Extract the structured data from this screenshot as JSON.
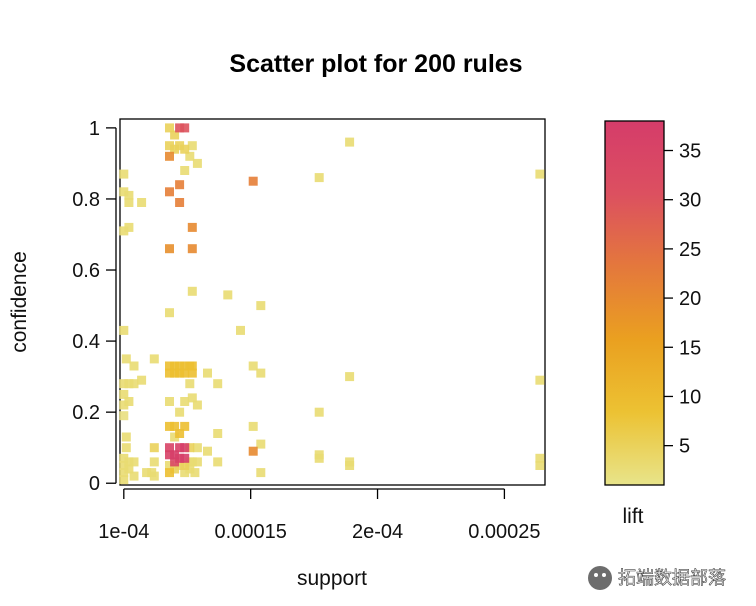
{
  "chart_data": {
    "type": "scatter",
    "title": "Scatter plot for 200 rules",
    "xlabel": "support",
    "ylabel": "confidence",
    "xlim": [
      9.85e-05,
      0.000266
    ],
    "ylim": [
      -0.005,
      1.025
    ],
    "x_ticks": [
      {
        "value": 0.0001,
        "label": "1e-04"
      },
      {
        "value": 0.00015,
        "label": "0.00015"
      },
      {
        "value": 0.0002,
        "label": "2e-04"
      },
      {
        "value": 0.00025,
        "label": "0.00025"
      }
    ],
    "y_ticks": [
      {
        "value": 0,
        "label": "0"
      },
      {
        "value": 0.2,
        "label": "0.2"
      },
      {
        "value": 0.4,
        "label": "0.4"
      },
      {
        "value": 0.6,
        "label": "0.6"
      },
      {
        "value": 0.8,
        "label": "0.8"
      },
      {
        "value": 1,
        "label": "1"
      }
    ],
    "grid": false,
    "legend": {
      "label": "lift",
      "placement": "right",
      "range": [
        1,
        38
      ],
      "ticks": [
        5,
        10,
        15,
        20,
        25,
        30,
        35
      ],
      "colors": [
        "#e8e48a",
        "#ecc233",
        "#eaa020",
        "#e4783c",
        "#dc5060",
        "#d53c6a"
      ]
    },
    "points": [
      [
        0.0001,
        0.87,
        3
      ],
      [
        0.0001,
        0.82,
        3
      ],
      [
        0.0001,
        0.71,
        3
      ],
      [
        0.0001,
        0.43,
        3
      ],
      [
        0.0001,
        0.28,
        3
      ],
      [
        0.0001,
        0.25,
        3
      ],
      [
        0.0001,
        0.22,
        3
      ],
      [
        0.0001,
        0.19,
        2
      ],
      [
        0.0001,
        0.07,
        3
      ],
      [
        0.0001,
        0.05,
        3
      ],
      [
        0.0001,
        0.03,
        3
      ],
      [
        0.0001,
        0.01,
        3
      ],
      [
        0.000101,
        0.35,
        3
      ],
      [
        0.000101,
        0.13,
        3
      ],
      [
        0.000101,
        0.1,
        3
      ],
      [
        0.000102,
        0.72,
        3
      ],
      [
        0.000102,
        0.81,
        3
      ],
      [
        0.000102,
        0.79,
        3
      ],
      [
        0.000102,
        0.28,
        3
      ],
      [
        0.000102,
        0.23,
        3
      ],
      [
        0.000102,
        0.06,
        3
      ],
      [
        0.000102,
        0.04,
        3
      ],
      [
        0.000104,
        0.33,
        3
      ],
      [
        0.000104,
        0.28,
        3
      ],
      [
        0.000104,
        0.06,
        3
      ],
      [
        0.000104,
        0.02,
        3
      ],
      [
        0.000107,
        0.79,
        3
      ],
      [
        0.000107,
        0.29,
        3
      ],
      [
        0.000109,
        0.03,
        3
      ],
      [
        0.000111,
        0.03,
        3
      ],
      [
        0.000112,
        0.1,
        5
      ],
      [
        0.000112,
        0.35,
        3
      ],
      [
        0.000112,
        0.06,
        3
      ],
      [
        0.000112,
        0.02,
        3
      ],
      [
        0.000118,
        1.0,
        5
      ],
      [
        0.000118,
        0.95,
        5
      ],
      [
        0.000118,
        0.92,
        20
      ],
      [
        0.000118,
        0.82,
        22
      ],
      [
        0.000118,
        0.66,
        19
      ],
      [
        0.000118,
        0.48,
        3
      ],
      [
        0.000118,
        0.33,
        9
      ],
      [
        0.000118,
        0.31,
        9
      ],
      [
        0.000118,
        0.23,
        3
      ],
      [
        0.000118,
        0.16,
        9
      ],
      [
        0.000118,
        0.1,
        35
      ],
      [
        0.000118,
        0.08,
        36
      ],
      [
        0.000118,
        0.05,
        3
      ],
      [
        0.000118,
        0.03,
        9
      ],
      [
        0.00012,
        0.98,
        5
      ],
      [
        0.00012,
        0.94,
        5
      ],
      [
        0.00012,
        0.33,
        9
      ],
      [
        0.00012,
        0.31,
        9
      ],
      [
        0.00012,
        0.16,
        9
      ],
      [
        0.00012,
        0.13,
        3
      ],
      [
        0.00012,
        0.08,
        37
      ],
      [
        0.00012,
        0.06,
        34
      ],
      [
        0.00012,
        0.04,
        5
      ],
      [
        0.000122,
        1.0,
        30
      ],
      [
        0.000122,
        0.84,
        22
      ],
      [
        0.000122,
        0.79,
        22
      ],
      [
        0.000122,
        0.95,
        5
      ],
      [
        0.000122,
        0.33,
        9
      ],
      [
        0.000122,
        0.31,
        9
      ],
      [
        0.000122,
        0.2,
        3
      ],
      [
        0.000122,
        0.14,
        9
      ],
      [
        0.000122,
        0.1,
        36
      ],
      [
        0.000122,
        0.07,
        36
      ],
      [
        0.000122,
        0.05,
        3
      ],
      [
        0.000124,
        1.0,
        30
      ],
      [
        0.000124,
        0.94,
        5
      ],
      [
        0.000124,
        0.88,
        3
      ],
      [
        0.000124,
        0.33,
        9
      ],
      [
        0.000124,
        0.31,
        9
      ],
      [
        0.000124,
        0.23,
        3
      ],
      [
        0.000124,
        0.16,
        9
      ],
      [
        0.000124,
        0.1,
        37
      ],
      [
        0.000124,
        0.07,
        37
      ],
      [
        0.000124,
        0.05,
        5
      ],
      [
        0.000124,
        0.03,
        3
      ],
      [
        0.000126,
        0.92,
        3
      ],
      [
        0.000126,
        0.33,
        9
      ],
      [
        0.000126,
        0.28,
        3
      ],
      [
        0.000126,
        0.1,
        5
      ],
      [
        0.000126,
        0.06,
        3
      ],
      [
        0.000126,
        0.04,
        3
      ],
      [
        0.000127,
        0.95,
        3
      ],
      [
        0.000127,
        0.72,
        20
      ],
      [
        0.000127,
        0.66,
        20
      ],
      [
        0.000127,
        0.54,
        3
      ],
      [
        0.000127,
        0.33,
        9
      ],
      [
        0.000127,
        0.31,
        9
      ],
      [
        0.000127,
        0.24,
        3
      ],
      [
        0.000127,
        0.06,
        3
      ],
      [
        0.000128,
        0.03,
        3
      ],
      [
        0.000129,
        0.9,
        3
      ],
      [
        0.000129,
        0.22,
        3
      ],
      [
        0.000129,
        0.1,
        3
      ],
      [
        0.000129,
        0.06,
        3
      ],
      [
        0.000133,
        0.31,
        3
      ],
      [
        0.000133,
        0.09,
        3
      ],
      [
        0.000137,
        0.14,
        3
      ],
      [
        0.000137,
        0.06,
        3
      ],
      [
        0.000137,
        0.28,
        3
      ],
      [
        0.000141,
        0.53,
        3
      ],
      [
        0.000146,
        0.43,
        3
      ],
      [
        0.000151,
        0.85,
        22
      ],
      [
        0.000151,
        0.33,
        3
      ],
      [
        0.000151,
        0.16,
        3
      ],
      [
        0.000151,
        0.09,
        20
      ],
      [
        0.000154,
        0.5,
        3
      ],
      [
        0.000154,
        0.31,
        3
      ],
      [
        0.000154,
        0.11,
        3
      ],
      [
        0.000154,
        0.03,
        3
      ],
      [
        0.000177,
        0.86,
        3
      ],
      [
        0.000177,
        0.2,
        3
      ],
      [
        0.000177,
        0.08,
        3
      ],
      [
        0.000177,
        0.07,
        3
      ],
      [
        0.000189,
        0.96,
        3
      ],
      [
        0.000189,
        0.3,
        3
      ],
      [
        0.000189,
        0.06,
        3
      ],
      [
        0.000189,
        0.05,
        3
      ],
      [
        0.000264,
        0.87,
        3
      ],
      [
        0.000264,
        0.29,
        3
      ],
      [
        0.000264,
        0.07,
        3
      ],
      [
        0.000264,
        0.05,
        3
      ]
    ]
  },
  "watermark": "拓端数据部落"
}
